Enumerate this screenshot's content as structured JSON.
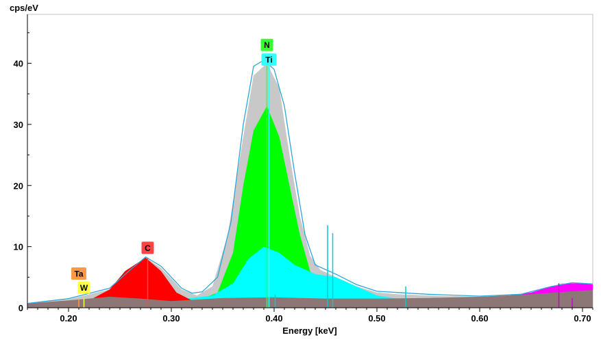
{
  "chart_data": {
    "type": "area",
    "title": "",
    "xlabel": "Energy [keV]",
    "ylabel": "cps/eV",
    "xlim": [
      0.16,
      0.71
    ],
    "ylim": [
      0,
      48
    ],
    "x_ticks": [
      "0.20",
      "0.30",
      "0.40",
      "0.50",
      "0.60",
      "0.70"
    ],
    "x_tick_values": [
      0.2,
      0.3,
      0.4,
      0.5,
      0.6,
      0.7
    ],
    "y_ticks": [
      "0",
      "10",
      "20",
      "30",
      "40"
    ],
    "y_tick_values": [
      0,
      10,
      20,
      30,
      40
    ],
    "grid": false,
    "legend": "none",
    "series": [
      {
        "color": "#c8c8c8",
        "role": "total-fit",
        "points": [
          [
            0.16,
            0.7
          ],
          [
            0.2,
            1.4
          ],
          [
            0.24,
            3.0
          ],
          [
            0.26,
            6.0
          ],
          [
            0.275,
            8.2
          ],
          [
            0.29,
            6.5
          ],
          [
            0.31,
            3.0
          ],
          [
            0.325,
            2.0
          ],
          [
            0.34,
            3.5
          ],
          [
            0.355,
            12.0
          ],
          [
            0.37,
            28.0
          ],
          [
            0.38,
            38.0
          ],
          [
            0.393,
            40.0
          ],
          [
            0.405,
            36.0
          ],
          [
            0.415,
            25.0
          ],
          [
            0.425,
            15.0
          ],
          [
            0.435,
            8.5
          ],
          [
            0.445,
            6.2
          ],
          [
            0.46,
            5.0
          ],
          [
            0.48,
            3.5
          ],
          [
            0.5,
            2.5
          ],
          [
            0.52,
            2.2
          ],
          [
            0.55,
            2.0
          ],
          [
            0.6,
            1.8
          ],
          [
            0.64,
            2.0
          ],
          [
            0.66,
            3.0
          ],
          [
            0.68,
            4.0
          ],
          [
            0.71,
            3.8
          ]
        ]
      },
      {
        "color": "#00ff00",
        "role": "N",
        "points": [
          [
            0.33,
            1.5
          ],
          [
            0.345,
            2.5
          ],
          [
            0.36,
            9.0
          ],
          [
            0.37,
            20.0
          ],
          [
            0.38,
            29.0
          ],
          [
            0.393,
            33.0
          ],
          [
            0.405,
            28.0
          ],
          [
            0.415,
            20.0
          ],
          [
            0.425,
            12.0
          ],
          [
            0.435,
            6.0
          ],
          [
            0.445,
            3.5
          ],
          [
            0.46,
            2.0
          ]
        ]
      },
      {
        "color": "#00ffff",
        "role": "Ti",
        "points": [
          [
            0.3,
            1.2
          ],
          [
            0.34,
            2.0
          ],
          [
            0.36,
            4.0
          ],
          [
            0.375,
            8.0
          ],
          [
            0.39,
            10.0
          ],
          [
            0.405,
            9.0
          ],
          [
            0.42,
            7.0
          ],
          [
            0.44,
            5.5
          ],
          [
            0.46,
            5.0
          ],
          [
            0.48,
            3.5
          ],
          [
            0.5,
            2.0
          ],
          [
            0.52,
            1.5
          ]
        ]
      },
      {
        "color": "#ff0000",
        "role": "C",
        "points": [
          [
            0.22,
            1.2
          ],
          [
            0.24,
            3.0
          ],
          [
            0.255,
            6.0
          ],
          [
            0.275,
            8.2
          ],
          [
            0.29,
            6.0
          ],
          [
            0.305,
            2.5
          ],
          [
            0.32,
            1.2
          ]
        ]
      },
      {
        "color": "#ff00ff",
        "role": "unlabeled",
        "points": [
          [
            0.62,
            1.8
          ],
          [
            0.65,
            2.5
          ],
          [
            0.67,
            3.5
          ],
          [
            0.685,
            4.0
          ],
          [
            0.7,
            4.0
          ],
          [
            0.71,
            3.8
          ]
        ]
      },
      {
        "color": "#8c7676",
        "role": "background",
        "points": [
          [
            0.16,
            0.7
          ],
          [
            0.2,
            1.2
          ],
          [
            0.24,
            1.8
          ],
          [
            0.27,
            1.5
          ],
          [
            0.3,
            1.1
          ],
          [
            0.35,
            1.6
          ],
          [
            0.4,
            1.7
          ],
          [
            0.45,
            1.5
          ],
          [
            0.5,
            1.5
          ],
          [
            0.55,
            1.6
          ],
          [
            0.6,
            1.8
          ],
          [
            0.65,
            2.2
          ],
          [
            0.7,
            2.8
          ],
          [
            0.71,
            2.9
          ]
        ]
      }
    ],
    "spectrum_line": {
      "color": "#2aa7d6",
      "points": [
        [
          0.16,
          0.7
        ],
        [
          0.2,
          1.5
        ],
        [
          0.24,
          3.2
        ],
        [
          0.26,
          6.2
        ],
        [
          0.275,
          8.3
        ],
        [
          0.29,
          6.8
        ],
        [
          0.31,
          3.2
        ],
        [
          0.32,
          2.4
        ],
        [
          0.33,
          2.6
        ],
        [
          0.345,
          5.0
        ],
        [
          0.358,
          14.0
        ],
        [
          0.37,
          30.0
        ],
        [
          0.38,
          39.5
        ],
        [
          0.39,
          40.5
        ],
        [
          0.4,
          39.0
        ],
        [
          0.41,
          33.0
        ],
        [
          0.42,
          22.0
        ],
        [
          0.43,
          12.0
        ],
        [
          0.44,
          7.0
        ],
        [
          0.46,
          5.5
        ],
        [
          0.48,
          3.8
        ],
        [
          0.5,
          2.7
        ],
        [
          0.52,
          2.5
        ],
        [
          0.55,
          2.2
        ],
        [
          0.6,
          1.9
        ],
        [
          0.64,
          2.2
        ],
        [
          0.67,
          3.5
        ],
        [
          0.69,
          4.1
        ],
        [
          0.71,
          3.9
        ]
      ]
    },
    "element_markers": [
      {
        "label": "N",
        "color": "#33ff33",
        "x": 0.393,
        "y": 40.0,
        "label_y": 43.0
      },
      {
        "label": "Ti",
        "color": "#33ffff",
        "x": 0.395,
        "y": 40.0,
        "label_y": 40.6
      },
      {
        "label": "C",
        "color": "#ff4444",
        "x": 0.277,
        "y": 8.2,
        "label_y": 9.8
      },
      {
        "label": "Ta",
        "color": "#ff9944",
        "x": 0.21,
        "y": 1.4,
        "label_y": 5.6
      },
      {
        "label": "W",
        "color": "#ffff44",
        "x": 0.215,
        "y": 1.5,
        "label_y": 3.3
      }
    ],
    "extra_lines": [
      {
        "color": "#00cccc",
        "x": 0.452,
        "y": 13.5
      },
      {
        "color": "#00cccc",
        "x": 0.457,
        "y": 12.2
      },
      {
        "color": "#00cccc",
        "x": 0.528,
        "y": 3.5
      },
      {
        "color": "#00cccc",
        "x": 0.401,
        "y": 2.2
      },
      {
        "color": "#cc00cc",
        "x": 0.677,
        "y": 4.0
      },
      {
        "color": "#cc00cc",
        "x": 0.69,
        "y": 1.6
      }
    ]
  }
}
